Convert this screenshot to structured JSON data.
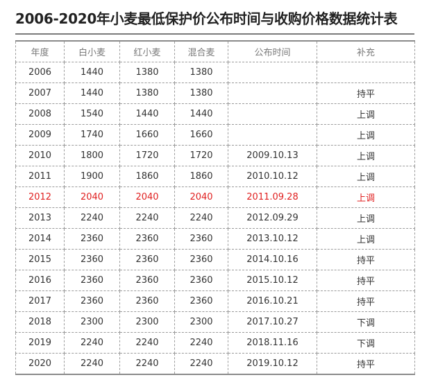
{
  "title": "2006-2020年小麦最低保护价公布时间与收购价格数据统计表",
  "highlight_color": "#e02020",
  "table": {
    "headers": [
      "年度",
      "白小麦",
      "红小麦",
      "混合麦",
      "公布时间",
      "补充"
    ],
    "rows": [
      {
        "year": "2006",
        "white": "1440",
        "red": "1380",
        "mixed": "1380",
        "date": "",
        "note": "",
        "highlight": false
      },
      {
        "year": "2007",
        "white": "1440",
        "red": "1380",
        "mixed": "1380",
        "date": "",
        "note": "持平",
        "highlight": false
      },
      {
        "year": "2008",
        "white": "1540",
        "red": "1440",
        "mixed": "1440",
        "date": "",
        "note": "上调",
        "highlight": false
      },
      {
        "year": "2009",
        "white": "1740",
        "red": "1660",
        "mixed": "1660",
        "date": "",
        "note": "上调",
        "highlight": false
      },
      {
        "year": "2010",
        "white": "1800",
        "red": "1720",
        "mixed": "1720",
        "date": "2009.10.13",
        "note": "上调",
        "highlight": false
      },
      {
        "year": "2011",
        "white": "1900",
        "red": "1860",
        "mixed": "1860",
        "date": "2010.10.12",
        "note": "上调",
        "highlight": false
      },
      {
        "year": "2012",
        "white": "2040",
        "red": "2040",
        "mixed": "2040",
        "date": "2011.09.28",
        "note": "上调",
        "highlight": true
      },
      {
        "year": "2013",
        "white": "2240",
        "red": "2240",
        "mixed": "2240",
        "date": "2012.09.29",
        "note": "上调",
        "highlight": false
      },
      {
        "year": "2014",
        "white": "2360",
        "red": "2360",
        "mixed": "2360",
        "date": "2013.10.12",
        "note": "上调",
        "highlight": false
      },
      {
        "year": "2015",
        "white": "2360",
        "red": "2360",
        "mixed": "2360",
        "date": "2014.10.16",
        "note": "持平",
        "highlight": false
      },
      {
        "year": "2016",
        "white": "2360",
        "red": "2360",
        "mixed": "2360",
        "date": "2015.10.12",
        "note": "持平",
        "highlight": false
      },
      {
        "year": "2017",
        "white": "2360",
        "red": "2360",
        "mixed": "2360",
        "date": "2016.10.21",
        "note": "持平",
        "highlight": false
      },
      {
        "year": "2018",
        "white": "2300",
        "red": "2300",
        "mixed": "2300",
        "date": "2017.10.27",
        "note": "下调",
        "highlight": false
      },
      {
        "year": "2019",
        "white": "2240",
        "red": "2240",
        "mixed": "2240",
        "date": "2018.11.16",
        "note": "下调",
        "highlight": false
      },
      {
        "year": "2020",
        "white": "2240",
        "red": "2240",
        "mixed": "2240",
        "date": "2019.10.12",
        "note": "持平",
        "highlight": false
      }
    ]
  }
}
